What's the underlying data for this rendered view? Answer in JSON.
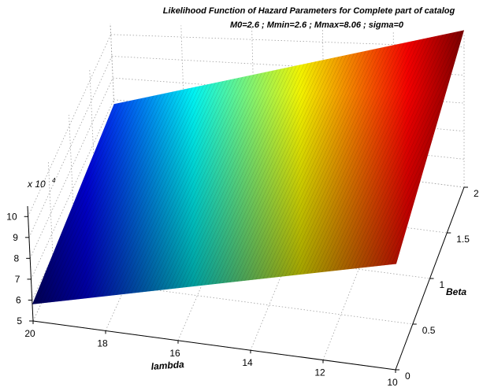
{
  "chart_data": {
    "type": "surface",
    "title": "Likelihood Function of Hazard Parameters for Complete part of catalog",
    "subtitle": "M0=2.6 ; Mmin=2.6 ; Mmax=8.06 ; sigma=0",
    "xlabel": "lambda",
    "ylabel": "Beta",
    "zlabel": "",
    "z_exponent": "x 10",
    "z_exponent_power": "4",
    "xlim": [
      10,
      20
    ],
    "ylim": [
      0,
      2
    ],
    "zlim": [
      50000,
      105000
    ],
    "x_ticks": [
      20,
      18,
      16,
      14,
      12,
      10
    ],
    "y_ticks": [
      0,
      0.5,
      1,
      1.5,
      2
    ],
    "z_ticks": [
      5,
      6,
      7,
      8,
      9,
      10
    ],
    "x_tick_labels": [
      "20",
      "18",
      "16",
      "14",
      "12",
      "10"
    ],
    "y_tick_labels": [
      "0",
      "0.5",
      "1",
      "1.5",
      "2"
    ],
    "z_tick_labels": [
      "5",
      "6",
      "7",
      "8",
      "9",
      "10"
    ],
    "surface": {
      "lambda": [
        20,
        10
      ],
      "beta": [
        0,
        2
      ],
      "z": [
        [
          58000,
          101000
        ],
        [
          68000,
          106000
        ]
      ]
    },
    "colormap": "jet",
    "grid": true
  }
}
